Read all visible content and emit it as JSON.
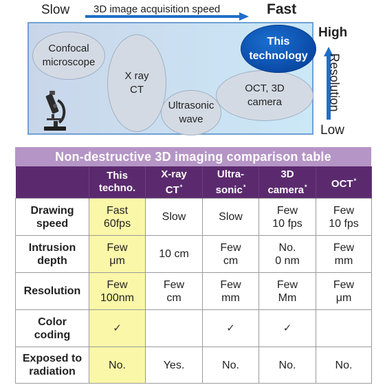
{
  "diagram": {
    "slow_label": "Slow",
    "fast_label": "Fast",
    "speed_axis_label": "3D image acquisition speed",
    "high_label": "High",
    "low_label": "Low",
    "resolution_label": "Resolution",
    "ellipses": {
      "confocal": "Confocal microscope",
      "xray": "X ray CT",
      "ultrasonic": "Ultrasonic wave",
      "oct": "OCT, 3D camera",
      "tech": "This technology"
    },
    "icon": "microscope-icon"
  },
  "table": {
    "title": "Non-destructive 3D imaging comparison table",
    "headers": [
      {
        "line1": "This",
        "line2": "techno.",
        "mark": ""
      },
      {
        "line1": "X-ray",
        "line2": "CT",
        "mark": "*"
      },
      {
        "line1": "Ultra-",
        "line2": "sonic",
        "mark": "*"
      },
      {
        "line1": "3D",
        "line2": "camera",
        "mark": "*"
      },
      {
        "line1": "OCT",
        "line2": "",
        "mark": "*"
      }
    ],
    "rows": [
      {
        "label1": "Drawing",
        "label2": "speed",
        "cells": [
          [
            "Fast",
            "60fps"
          ],
          [
            "Slow",
            ""
          ],
          [
            "Slow",
            ""
          ],
          [
            "Few",
            "10 fps"
          ],
          [
            "Few",
            "10 fps"
          ]
        ]
      },
      {
        "label1": "Intrusion",
        "label2": "depth",
        "cells": [
          [
            "Few",
            "μm"
          ],
          [
            "10 cm",
            ""
          ],
          [
            "Few",
            "cm"
          ],
          [
            "No.",
            "0 nm"
          ],
          [
            "Few",
            "mm"
          ]
        ]
      },
      {
        "label1": "Resolution",
        "label2": "",
        "cells": [
          [
            "Few",
            "100nm"
          ],
          [
            "Few",
            "cm"
          ],
          [
            "Few",
            "mm"
          ],
          [
            "Few",
            "Mm"
          ],
          [
            "Few",
            "μm"
          ]
        ]
      },
      {
        "label1": "Color",
        "label2": "coding",
        "cells": [
          [
            "✓",
            ""
          ],
          [
            "",
            ""
          ],
          [
            "✓",
            ""
          ],
          [
            "✓",
            ""
          ],
          [
            "",
            ""
          ]
        ]
      },
      {
        "label1": "Exposed to",
        "label2": "radiation",
        "cells": [
          [
            "No.",
            ""
          ],
          [
            "Yes.",
            ""
          ],
          [
            "No.",
            ""
          ],
          [
            "No.",
            ""
          ],
          [
            "No.",
            ""
          ]
        ]
      }
    ]
  },
  "colors": {
    "title_bar": "#b595c6",
    "header_bg": "#5b2a6e",
    "highlight": "#fbf7a8",
    "tech_blue": "#0a4aa6",
    "arrow_blue": "#1f6fc8"
  }
}
